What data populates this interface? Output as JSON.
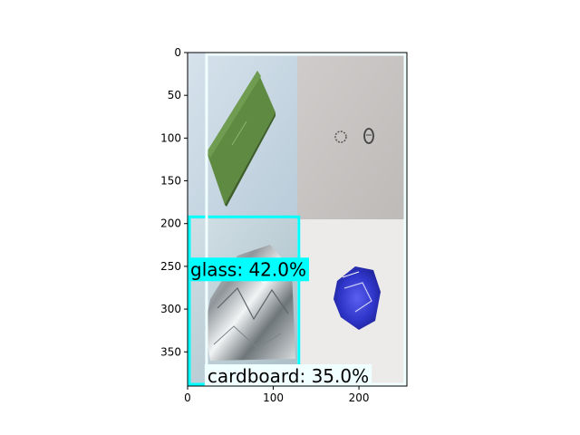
{
  "figure": {
    "axes": {
      "xlim": [
        0,
        256
      ],
      "ylim": [
        390,
        0
      ],
      "x_ticks": [
        "0",
        "100",
        "200"
      ],
      "x_tick_values": [
        0,
        100,
        200
      ],
      "y_ticks": [
        "0",
        "50",
        "100",
        "150",
        "200",
        "250",
        "300",
        "350"
      ],
      "y_tick_values": [
        0,
        50,
        100,
        150,
        200,
        250,
        300,
        350
      ]
    },
    "image": {
      "tiles": [
        {
          "name": "green-plastic-sheet",
          "background": "#cfdbe6"
        },
        {
          "name": "white-paper-with-stamps",
          "background": "#c9c6c4"
        },
        {
          "name": "crumpled-aluminium-foil",
          "background": "#c7d7dd"
        },
        {
          "name": "crushed-blue-can",
          "background": "#ecebea"
        }
      ]
    },
    "detections": [
      {
        "label": "glass: 42.0%",
        "color": "#00ffff",
        "box": {
          "x0": 0,
          "y0": 190,
          "x1": 132,
          "y1": 390
        }
      },
      {
        "label": "cardboard: 35.0%",
        "color": "#f0ffff",
        "box": {
          "x0": 20,
          "y0": 0,
          "x1": 256,
          "y1": 390
        }
      }
    ]
  }
}
